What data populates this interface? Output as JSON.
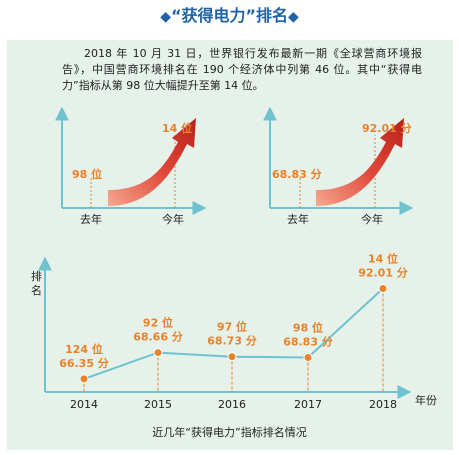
{
  "title": "“获得电力”排名",
  "intro": "2018 年 10 月 31 日，世界银行发布最新一期《全球营商环境报告》，中国营商环境排名在 190 个经济体中列第 46 位。其中“获得电力”指标从第 98 位大幅提升至第 14 位。",
  "comparisons": [
    {
      "from_label": "98 位",
      "to_label": "14 位",
      "x_labels": [
        "去年",
        "今年"
      ]
    },
    {
      "from_label": "68.83 分",
      "to_label": "92.01 分",
      "x_labels": [
        "去年",
        "今年"
      ]
    }
  ],
  "colors": {
    "accent": "#e8822a",
    "line": "#6fc2d0",
    "title": "#1f63a6",
    "arrow": "#d5382b",
    "background": "#e6f1ea"
  },
  "chart_data": {
    "type": "line",
    "ylabel": "排名",
    "xlabel": "年份",
    "x": [
      "2014",
      "2015",
      "2016",
      "2017",
      "2018"
    ],
    "series": [
      {
        "values": [
          124,
          92,
          97,
          98,
          14
        ]
      }
    ],
    "data_labels": [
      [
        "124 位",
        "66.35 分"
      ],
      [
        "92 位",
        "68.66 分"
      ],
      [
        "97 位",
        "68.73 分"
      ],
      [
        "98 位",
        "68.83 分"
      ],
      [
        "14 位",
        "92.01 分"
      ]
    ],
    "ylim": [
      140,
      0
    ],
    "grid": false
  },
  "caption": "近几年“获得电力”指标排名情况"
}
